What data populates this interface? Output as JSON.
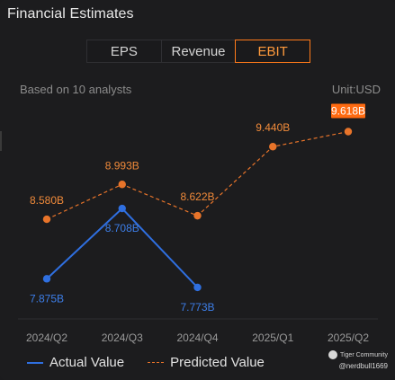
{
  "header": {
    "title": "Financial Estimates"
  },
  "tabs": [
    {
      "label": "EPS",
      "active": false
    },
    {
      "label": "Revenue",
      "active": false
    },
    {
      "label": "EBIT",
      "active": true
    }
  ],
  "info": {
    "subtitle": "Based on 10 analysts",
    "unit": "Unit:USD"
  },
  "legend": {
    "actual": "Actual Value",
    "predicted": "Predicted Value"
  },
  "watermark": {
    "brand": "Tiger Community",
    "handle": "@nerdbull1669",
    "logo_icon": "tiger-community-logo-icon"
  },
  "colors": {
    "background": "#1c1c1e",
    "accent": "#ff7a1a",
    "actual": "#2f6fe0",
    "actual_label": "#3d7ee8",
    "predicted": "#e8742a",
    "predicted_label": "#f08a3a",
    "highlight_label_bg": "#ff6a10"
  },
  "chart_data": {
    "type": "line",
    "categories": [
      "2024/Q2",
      "2024/Q3",
      "2024/Q4",
      "2025/Q1",
      "2025/Q2"
    ],
    "series": [
      {
        "name": "Actual Value",
        "style": "solid",
        "values": [
          7.875,
          8.708,
          7.773,
          null,
          null
        ],
        "labels": [
          "7.875B",
          "8.708B",
          "7.773B",
          null,
          null
        ]
      },
      {
        "name": "Predicted Value",
        "style": "dashed",
        "values": [
          8.58,
          8.993,
          8.622,
          9.44,
          9.618
        ],
        "labels": [
          "8.580B",
          "8.993B",
          "8.622B",
          "9.440B",
          "9.618B"
        ],
        "highlight_index": 4
      }
    ],
    "unit": "USD (billions)",
    "ylim": [
      7.4,
      9.9
    ],
    "grid": false,
    "legend_position": "bottom-left"
  }
}
